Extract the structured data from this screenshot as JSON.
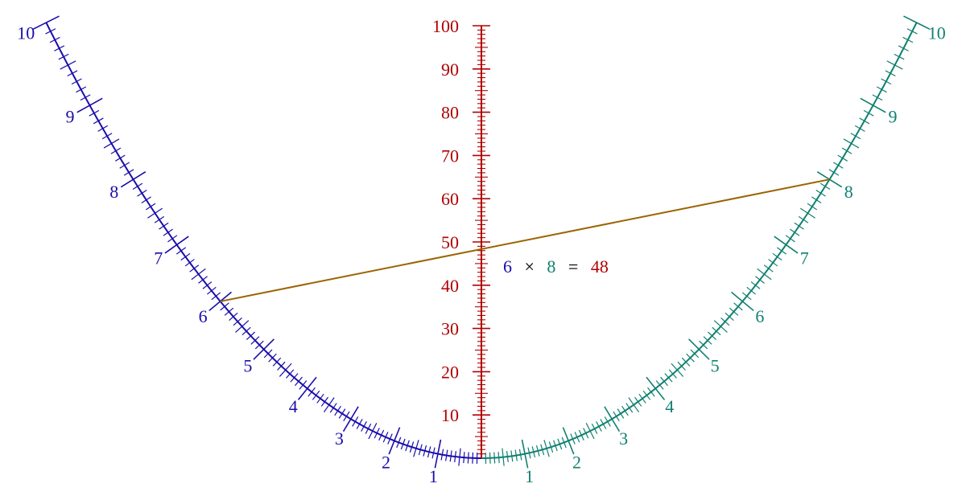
{
  "colors": {
    "left_scale": "#1a0dab",
    "right_scale": "#108070",
    "center_scale": "#b00000",
    "index_line": "#9a6400",
    "background": "#ffffff"
  },
  "center_scale": {
    "min": 0,
    "max": 100,
    "major_step": 10,
    "minor_step": 1,
    "labels": [
      "10",
      "20",
      "30",
      "40",
      "50",
      "60",
      "70",
      "80",
      "90",
      "100"
    ]
  },
  "left_scale": {
    "min": 0,
    "max": 10,
    "minor_step": 0.1,
    "labels": [
      "1",
      "2",
      "3",
      "4",
      "5",
      "6",
      "7",
      "8",
      "9",
      "10"
    ]
  },
  "right_scale": {
    "min": 0,
    "max": 10,
    "minor_step": 0.1,
    "labels": [
      "1",
      "2",
      "3",
      "4",
      "5",
      "6",
      "7",
      "8",
      "9",
      "10"
    ]
  },
  "example": {
    "a": 6,
    "b": 8,
    "product": 48,
    "a_text": "6",
    "times": "×",
    "b_text": "8",
    "equals": "=",
    "product_text": "48"
  }
}
